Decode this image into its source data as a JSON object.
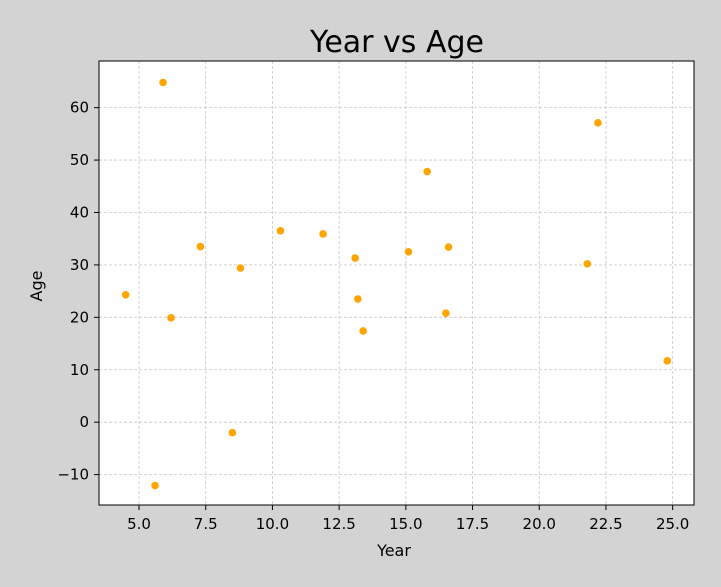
{
  "chart_data": {
    "type": "scatter",
    "title": "Year vs Age",
    "xlabel": "Year",
    "ylabel": "Age",
    "xlim": [
      3.5,
      25.8
    ],
    "ylim": [
      -15.8,
      68.9
    ],
    "xticks": [
      5.0,
      7.5,
      10.0,
      12.5,
      15.0,
      17.5,
      20.0,
      22.5,
      25.0
    ],
    "xtick_labels": [
      "5.0",
      "7.5",
      "10.0",
      "12.5",
      "15.0",
      "17.5",
      "20.0",
      "22.5",
      "25.0"
    ],
    "yticks": [
      -10,
      0,
      10,
      20,
      30,
      40,
      50,
      60
    ],
    "ytick_labels": [
      "−10",
      "0",
      "10",
      "20",
      "30",
      "40",
      "50",
      "60"
    ],
    "grid": true,
    "point_color": "#FFA500",
    "points": [
      {
        "x": 4.5,
        "y": 24.3
      },
      {
        "x": 5.6,
        "y": -12.1
      },
      {
        "x": 5.9,
        "y": 64.8
      },
      {
        "x": 6.2,
        "y": 19.9
      },
      {
        "x": 7.3,
        "y": 33.5
      },
      {
        "x": 8.5,
        "y": -2.0
      },
      {
        "x": 8.8,
        "y": 29.4
      },
      {
        "x": 10.3,
        "y": 36.5
      },
      {
        "x": 11.9,
        "y": 35.9
      },
      {
        "x": 13.1,
        "y": 31.3
      },
      {
        "x": 13.2,
        "y": 23.5
      },
      {
        "x": 13.4,
        "y": 17.4
      },
      {
        "x": 15.1,
        "y": 32.5
      },
      {
        "x": 15.8,
        "y": 47.8
      },
      {
        "x": 16.5,
        "y": 20.8
      },
      {
        "x": 16.6,
        "y": 33.4
      },
      {
        "x": 21.8,
        "y": 30.2
      },
      {
        "x": 22.2,
        "y": 57.1
      },
      {
        "x": 24.8,
        "y": 11.7
      }
    ]
  }
}
